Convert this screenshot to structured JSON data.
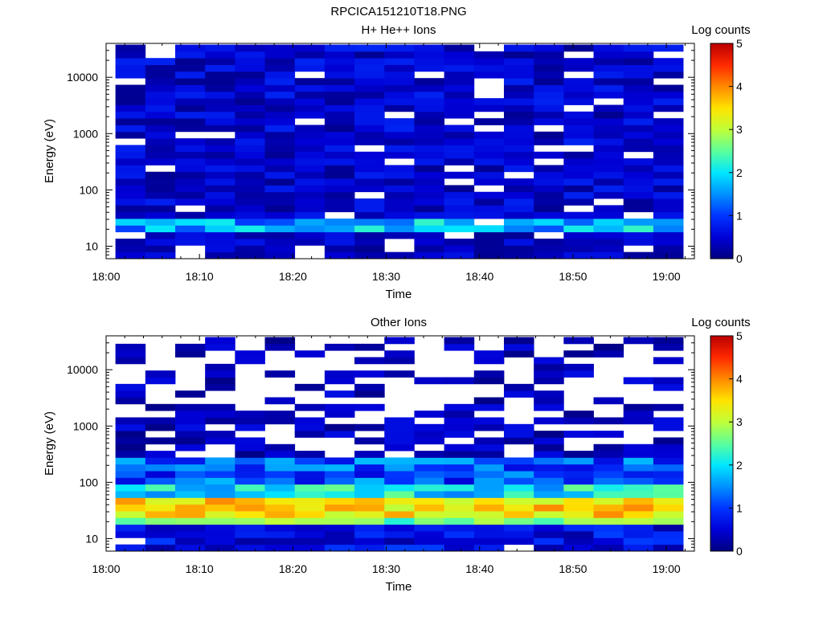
{
  "figure": {
    "filename": "RPCICA151210T18.PNG"
  },
  "palette": [
    "#00007f",
    "#0000d6",
    "#0033ff",
    "#0090ff",
    "#00e6ff",
    "#5aff9d",
    "#bfff3a",
    "#ffe400",
    "#ff8a00",
    "#ff2a00",
    "#bb0000"
  ],
  "chart_data": [
    {
      "type": "heatmap",
      "title": "H+ He++ Ions",
      "xlabel": "Time",
      "ylabel": "Energy (eV)",
      "y_scale": "log",
      "y_range_eV": [
        6,
        40000
      ],
      "x_range": [
        "18:00",
        "19:03"
      ],
      "x_ticks": [
        "18:00",
        "18:10",
        "18:20",
        "18:30",
        "18:40",
        "18:50",
        "19:00"
      ],
      "y_ticks": [
        "10",
        "100",
        "1000",
        "10000"
      ],
      "colorbar": {
        "label": "Log counts",
        "min": 0,
        "max": 5,
        "ticks": [
          "0",
          "1",
          "2",
          "3",
          "4",
          "5"
        ]
      },
      "data_start": "18:01",
      "column_width_min": 3.2,
      "columns": 19,
      "bins": 32,
      "energy_max_eV": 38000,
      "energy_min_eV": 6,
      "values": []
    },
    {
      "type": "heatmap",
      "title": "Other Ions",
      "xlabel": "Time",
      "ylabel": "Energy (eV)",
      "y_scale": "log",
      "y_range_eV": [
        6,
        40000
      ],
      "x_range": [
        "18:00",
        "19:03"
      ],
      "x_ticks": [
        "18:00",
        "18:10",
        "18:20",
        "18:30",
        "18:40",
        "18:50",
        "19:00"
      ],
      "y_ticks": [
        "10",
        "100",
        "1000",
        "10000"
      ],
      "colorbar": {
        "label": "Log counts",
        "min": 0,
        "max": 5,
        "ticks": [
          "0",
          "1",
          "2",
          "3",
          "4",
          "5"
        ]
      },
      "data_start": "18:01",
      "column_width_min": 3.2,
      "columns": 19,
      "bins": 32,
      "energy_max_eV": 38000,
      "energy_min_eV": 6,
      "values": []
    }
  ]
}
